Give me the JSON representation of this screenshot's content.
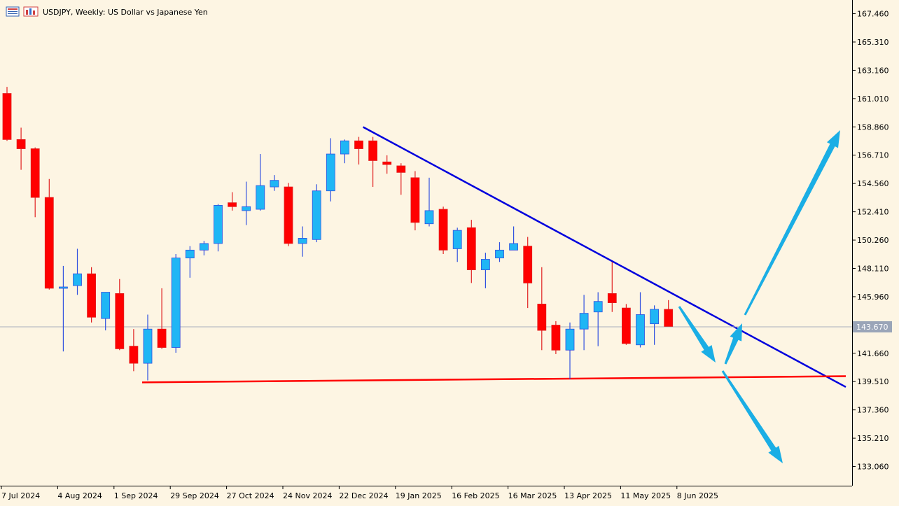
{
  "header": {
    "symbol": "USDJPY",
    "timeframe": "Weekly",
    "description": "US Dollar vs Japanese Yen",
    "title": "USDJPY, Weekly:  US Dollar vs Japanese Yen",
    "icons": [
      "chart-window-icon",
      "chart-properties-icon"
    ]
  },
  "chart_data": {
    "type": "candlestick",
    "symbol": "USDJPY",
    "timeframe": "Weekly",
    "title": "USDJPY, Weekly:  US Dollar vs Japanese Yen",
    "ylim": [
      131.6,
      168.5
    ],
    "y_ticks": [
      "167.460",
      "165.310",
      "163.160",
      "161.010",
      "158.860",
      "156.710",
      "154.560",
      "152.410",
      "150.260",
      "148.110",
      "145.960",
      "143.670",
      "141.660",
      "139.510",
      "137.360",
      "135.210",
      "133.060"
    ],
    "x_ticks": [
      {
        "label": "7 Jul 2024",
        "index": 0
      },
      {
        "label": "4 Aug 2024",
        "index": 4
      },
      {
        "label": "1 Sep 2024",
        "index": 8
      },
      {
        "label": "29 Sep 2024",
        "index": 12
      },
      {
        "label": "27 Oct 2024",
        "index": 16
      },
      {
        "label": "24 Nov 2024",
        "index": 20
      },
      {
        "label": "22 Dec 2024",
        "index": 24
      },
      {
        "label": "19 Jan 2025",
        "index": 28
      },
      {
        "label": "16 Feb 2025",
        "index": 32
      },
      {
        "label": "16 Mar 2025",
        "index": 36
      },
      {
        "label": "13 Apr 2025",
        "index": 40
      },
      {
        "label": "11 May 2025",
        "index": 44
      },
      {
        "label": "8 Jun 2025",
        "index": 48
      }
    ],
    "current_price": "143.670",
    "candles": [
      {
        "o": 161.4,
        "h": 161.9,
        "l": 157.8,
        "c": 157.9
      },
      {
        "o": 157.9,
        "h": 158.8,
        "l": 155.6,
        "c": 157.2
      },
      {
        "o": 157.2,
        "h": 157.3,
        "l": 152.0,
        "c": 153.5
      },
      {
        "o": 153.5,
        "h": 154.9,
        "l": 146.5,
        "c": 146.6
      },
      {
        "o": 146.6,
        "h": 148.3,
        "l": 141.8,
        "c": 146.7
      },
      {
        "o": 146.8,
        "h": 149.6,
        "l": 146.1,
        "c": 147.7
      },
      {
        "o": 147.7,
        "h": 148.2,
        "l": 144.0,
        "c": 144.4
      },
      {
        "o": 144.3,
        "h": 146.3,
        "l": 143.4,
        "c": 146.3
      },
      {
        "o": 146.2,
        "h": 147.3,
        "l": 141.9,
        "c": 142.0
      },
      {
        "o": 142.2,
        "h": 143.5,
        "l": 140.3,
        "c": 140.9
      },
      {
        "o": 140.9,
        "h": 144.6,
        "l": 139.6,
        "c": 143.5
      },
      {
        "o": 143.5,
        "h": 146.6,
        "l": 142.0,
        "c": 142.1
      },
      {
        "o": 142.1,
        "h": 149.2,
        "l": 141.7,
        "c": 148.9
      },
      {
        "o": 148.9,
        "h": 149.8,
        "l": 147.4,
        "c": 149.5
      },
      {
        "o": 149.5,
        "h": 150.2,
        "l": 149.1,
        "c": 150.0
      },
      {
        "o": 150.0,
        "h": 153.0,
        "l": 149.4,
        "c": 152.9
      },
      {
        "o": 153.1,
        "h": 153.9,
        "l": 152.5,
        "c": 152.8
      },
      {
        "o": 152.5,
        "h": 154.7,
        "l": 151.4,
        "c": 152.8
      },
      {
        "o": 152.6,
        "h": 156.8,
        "l": 152.5,
        "c": 154.4
      },
      {
        "o": 154.3,
        "h": 155.2,
        "l": 154.0,
        "c": 154.8
      },
      {
        "o": 154.3,
        "h": 154.6,
        "l": 149.8,
        "c": 150.0
      },
      {
        "o": 150.0,
        "h": 151.3,
        "l": 149.0,
        "c": 150.4
      },
      {
        "o": 150.3,
        "h": 154.5,
        "l": 150.1,
        "c": 154.0
      },
      {
        "o": 154.0,
        "h": 158.0,
        "l": 153.2,
        "c": 156.8
      },
      {
        "o": 156.8,
        "h": 157.9,
        "l": 156.1,
        "c": 157.8
      },
      {
        "o": 157.8,
        "h": 158.1,
        "l": 156.0,
        "c": 157.2
      },
      {
        "o": 157.8,
        "h": 158.1,
        "l": 154.3,
        "c": 156.3
      },
      {
        "o": 156.2,
        "h": 156.7,
        "l": 155.3,
        "c": 156.0
      },
      {
        "o": 155.9,
        "h": 156.1,
        "l": 153.7,
        "c": 155.4
      },
      {
        "o": 155.0,
        "h": 155.5,
        "l": 151.0,
        "c": 151.6
      },
      {
        "o": 151.5,
        "h": 155.0,
        "l": 151.3,
        "c": 152.5
      },
      {
        "o": 152.6,
        "h": 152.8,
        "l": 149.2,
        "c": 149.5
      },
      {
        "o": 149.6,
        "h": 151.2,
        "l": 148.6,
        "c": 151.0
      },
      {
        "o": 151.2,
        "h": 151.8,
        "l": 147.0,
        "c": 148.0
      },
      {
        "o": 148.0,
        "h": 149.3,
        "l": 146.6,
        "c": 148.8
      },
      {
        "o": 148.9,
        "h": 150.1,
        "l": 148.6,
        "c": 149.5
      },
      {
        "o": 149.5,
        "h": 151.3,
        "l": 149.5,
        "c": 150.0
      },
      {
        "o": 149.8,
        "h": 150.5,
        "l": 145.1,
        "c": 147.0
      },
      {
        "o": 145.4,
        "h": 148.2,
        "l": 141.9,
        "c": 143.4
      },
      {
        "o": 143.8,
        "h": 144.1,
        "l": 141.6,
        "c": 141.9
      },
      {
        "o": 141.9,
        "h": 144.0,
        "l": 139.7,
        "c": 143.5
      },
      {
        "o": 143.5,
        "h": 146.1,
        "l": 141.9,
        "c": 144.7
      },
      {
        "o": 144.8,
        "h": 146.3,
        "l": 142.2,
        "c": 145.6
      },
      {
        "o": 146.2,
        "h": 148.6,
        "l": 144.8,
        "c": 145.5
      },
      {
        "o": 145.1,
        "h": 145.4,
        "l": 142.3,
        "c": 142.4
      },
      {
        "o": 142.3,
        "h": 146.3,
        "l": 142.1,
        "c": 144.6
      },
      {
        "o": 143.9,
        "h": 145.3,
        "l": 142.3,
        "c": 145.0
      },
      {
        "o": 145.0,
        "h": 145.7,
        "l": 143.7,
        "c": 143.7
      }
    ],
    "lines": [
      {
        "name": "descending-trendline",
        "color": "#0000dd",
        "from": {
          "index": 25.7,
          "price": 158.85
        },
        "to": {
          "index": 60.0,
          "price": 139.1
        }
      },
      {
        "name": "horizontal-support",
        "color": "#ff0000",
        "from": {
          "index": 10.0,
          "price": 139.45
        },
        "to": {
          "index": 60.0,
          "price": 139.92
        }
      },
      {
        "name": "current-price-line",
        "color": "#a9b0bd",
        "price": 143.67
      }
    ],
    "arrows_color": "#1aaee5",
    "colors": {
      "bull": "#1fb6f5",
      "bear": "#ff0000",
      "wick_bull": "#3050e0",
      "wick_bear": "#e02020",
      "grid_axis": "#000000",
      "price_label_bg": "#9aa5b8"
    }
  }
}
